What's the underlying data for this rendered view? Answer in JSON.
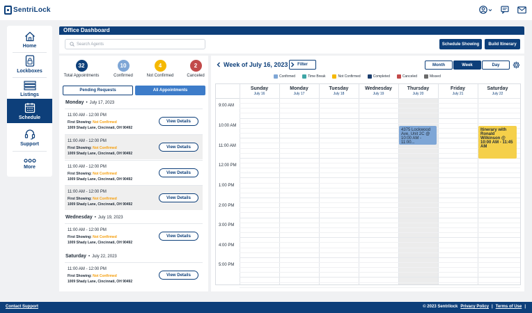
{
  "brand": {
    "name": "SentriLock",
    "accent": "#0d3f7a"
  },
  "top_icons": [
    "user-icon",
    "chevron-down-icon",
    "chat-icon",
    "mail-icon"
  ],
  "sidebar": {
    "items": [
      {
        "label": "Home",
        "icon": "home-icon"
      },
      {
        "label": "Lockboxes",
        "icon": "lockbox-icon"
      },
      {
        "label": "Listings",
        "icon": "listings-icon"
      },
      {
        "label": "Schedule",
        "icon": "calendar-icon",
        "active": true
      },
      {
        "label": "Support",
        "icon": "support-icon"
      },
      {
        "label": "More",
        "icon": "more-icon"
      }
    ]
  },
  "header": {
    "title": "Office Dashboard",
    "search_placeholder": "Search Agents",
    "schedule_showing": "Schedule Showing",
    "build_itinerary": "Build Itinerary"
  },
  "stats": [
    {
      "count": "32",
      "label": "Total Appointments",
      "color": "#0d3f7a"
    },
    {
      "count": "10",
      "label": "Confirmed",
      "color": "#7ea6d6"
    },
    {
      "count": "4",
      "label": "Not Confirmed",
      "color": "#f5b800"
    },
    {
      "count": "2",
      "label": "Canceled",
      "color": "#c24a4a"
    }
  ],
  "tabs": {
    "pending": "Pending Requests",
    "all": "All Appointments"
  },
  "days": [
    {
      "name": "Monday",
      "date": "July 17, 2023"
    },
    {
      "name": "Wednesday",
      "date": "July 19, 2023"
    },
    {
      "name": "Saturday",
      "date": "July 22, 2023"
    }
  ],
  "appointment": {
    "time": "11:00 AM - 12:00 PM",
    "showing_label": "First Showing:",
    "status": "Not Confirmed",
    "address": "1009 Shady Lane, Cincinnati, OH 90492",
    "view_details": "View Details"
  },
  "calendar": {
    "week_title": "Week of July 16, 2023",
    "filter": "Filter",
    "views": [
      "Month",
      "Week",
      "Day"
    ],
    "legend": [
      {
        "label": "Confirmed",
        "color": "#7ea6d6"
      },
      {
        "label": "Time Break",
        "color": "#3fa6a6"
      },
      {
        "label": "Not Confirmed",
        "color": "#f5b800"
      },
      {
        "label": "Completed",
        "color": "#1b3e6e"
      },
      {
        "label": "Canceled",
        "color": "#c24a4a"
      },
      {
        "label": "Missed",
        "color": "#6b6b6b"
      }
    ],
    "columns": [
      {
        "day": "Sunday",
        "date": "July 16"
      },
      {
        "day": "Monday",
        "date": "July 17"
      },
      {
        "day": "Tuesday",
        "date": "July 18"
      },
      {
        "day": "Wednesday",
        "date": "July 19"
      },
      {
        "day": "Thursday",
        "date": "July 20"
      },
      {
        "day": "Friday",
        "date": "July 21"
      },
      {
        "day": "Saturday",
        "date": "July 22"
      }
    ],
    "times": [
      "9:00 AM",
      "10:00 AM",
      "11:00 AM",
      "12:00 PM",
      "1:00 PM",
      "2:00 PM",
      "3:00 PM",
      "4:00 PM",
      "5:00 PM"
    ],
    "events": [
      {
        "text": "4375 Lockwood Ave, Unit 2C @ 10:00 AM - 11:00...",
        "color": "#7ea6d6"
      },
      {
        "text": "Itinerary with Ronald Wilkinson @ 10:00 AM - 11:45 AM",
        "color": "#f5d04a"
      }
    ]
  },
  "footer": {
    "contact": "Contact Support",
    "copyright": "© 2023 Sentrilock",
    "privacy": "Privacy Policy",
    "sep": "|",
    "terms": "Terms of Use"
  }
}
